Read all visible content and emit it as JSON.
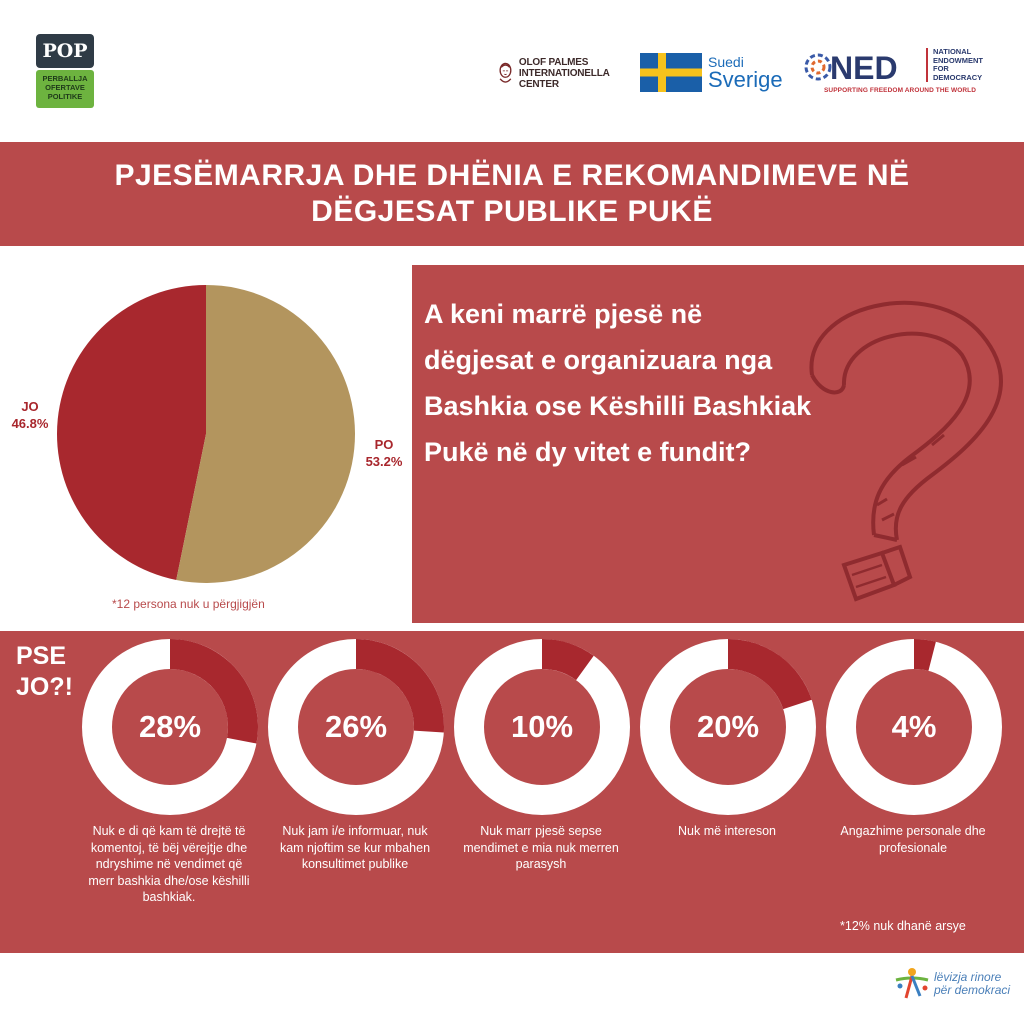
{
  "header": {
    "pop_logo": {
      "top": "POP",
      "bottom": "PERBALLJA OFERTAVE POLITIKE"
    },
    "olof_palme": "OLOF PALMES INTERNATIONELLA CENTER",
    "sweden": {
      "line1": "Suedi",
      "line2": "Sverige"
    },
    "ned": {
      "mark": "NED",
      "side": "NATIONAL ENDOWMENT FOR DEMOCRACY",
      "tagline": "SUPPORTING FREEDOM AROUND THE WORLD"
    }
  },
  "title": "PJESËMARRJA DHE DHËNIA E REKOMANDIMEVE NË DËGJESAT PUBLIKE PUKË",
  "question": "A keni marrë pjesë në dëgjesat e organizuara nga Bashkia ose Këshilli Bashkiak Pukë në dy vitet e fundit?",
  "colors": {
    "accent": "#b84a4b",
    "jo": "#a8282e",
    "po": "#b3955e",
    "ring": "#ffffff",
    "ring_fill": "#a8282e"
  },
  "chart_data": [
    {
      "type": "pie",
      "title": "",
      "categories": [
        "JO",
        "PO"
      ],
      "values": [
        46.8,
        53.2
      ],
      "labels": [
        "46.8%",
        "53.2%"
      ],
      "note": "*12 persona nuk u përgjigjën"
    },
    {
      "type": "donut",
      "title": "PSE JO?!",
      "categories": [
        "Nuk e di që kam të drejtë të komentoj, të bëj vërejtje dhe ndryshime në vendimet që merr bashkia dhe/ose këshilli bashkiak.",
        "Nuk jam i/e informuar, nuk kam njoftim se kur mbahen konsultimet publike",
        "Nuk marr pjesë sepse mendimet e mia nuk merren parasysh",
        "Nuk më intereson",
        "Angazhime personale dhe profesionale"
      ],
      "values": [
        28,
        26,
        10,
        20,
        4
      ],
      "labels": [
        "28%",
        "26%",
        "10%",
        "20%",
        "4%"
      ],
      "note": "*12% nuk dhanë arsye"
    }
  ],
  "footer": {
    "logo_line1": "lëvizja rinore",
    "logo_line2": "për demokraci"
  }
}
